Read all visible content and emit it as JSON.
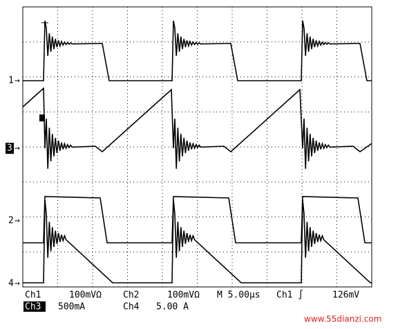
{
  "markers": {
    "ch1": "1",
    "ch3": "3",
    "ch2": "2",
    "ch4": "4"
  },
  "status": {
    "row1": [
      "Ch1",
      "100mVΩ",
      "Ch2",
      "100mVΩ",
      "M 5.00µs",
      "Ch1 ∫",
      "126mV"
    ],
    "row2": [
      "Ch3",
      "500mA",
      "Ch4",
      "5.00 A"
    ]
  },
  "watermark": "www.55dianzi.com"
}
